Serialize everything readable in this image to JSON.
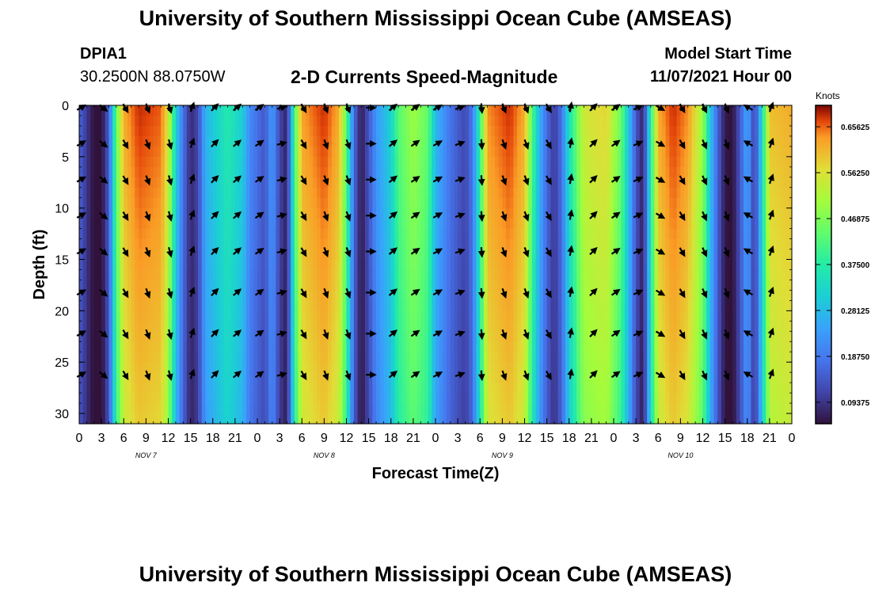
{
  "header": {
    "title": "University of Southern Mississippi Ocean Cube (AMSEAS)",
    "station_id": "DPIA1",
    "station_coords": "30.2500N  88.0750W",
    "subtitle": "2-D Currents Speed-Magnitude",
    "model_start_label": "Model Start Time",
    "model_start_value": "11/07/2021 Hour 00"
  },
  "footer": {
    "title": "University of Southern Mississippi Ocean Cube (AMSEAS)"
  },
  "chart_data": {
    "type": "heatmap",
    "title": "2-D Currents Speed-Magnitude",
    "xlabel": "Forecast Time(Z)",
    "ylabel": "Depth (ft)",
    "x_tick_labels": [
      "0",
      "3",
      "6",
      "9",
      "12",
      "15",
      "18",
      "21",
      "0",
      "3",
      "6",
      "9",
      "12",
      "15",
      "18",
      "21",
      "0",
      "3",
      "6",
      "9",
      "12",
      "15",
      "18",
      "21",
      "0",
      "3",
      "6",
      "9",
      "12",
      "15",
      "18",
      "21",
      "0"
    ],
    "date_labels": [
      {
        "label": "NOV 7",
        "hour": 9
      },
      {
        "label": "NOV 8",
        "hour": 33
      },
      {
        "label": "NOV 9",
        "hour": 57
      },
      {
        "label": "NOV 10",
        "hour": 81
      }
    ],
    "x_range_hours": [
      0,
      96
    ],
    "y_ticks": [
      0,
      5,
      10,
      15,
      20,
      25,
      30
    ],
    "y_range_ft": [
      0,
      31
    ],
    "colorbar": {
      "label": "Knots",
      "ticks": [
        "0.09375",
        "0.18750",
        "0.28125",
        "0.37500",
        "0.46875",
        "0.56250",
        "0.65625"
      ],
      "range": [
        0.05,
        0.7
      ]
    },
    "surface_speed_profile_knots": [
      {
        "hour": 0,
        "speed": 0.16
      },
      {
        "hour": 1,
        "speed": 0.1
      },
      {
        "hour": 2,
        "speed": 0.05
      },
      {
        "hour": 3,
        "speed": 0.05
      },
      {
        "hour": 4,
        "speed": 0.15
      },
      {
        "hour": 4.5,
        "speed": 0.3
      },
      {
        "hour": 5,
        "speed": 0.45
      },
      {
        "hour": 6,
        "speed": 0.62
      },
      {
        "hour": 8,
        "speed": 0.68
      },
      {
        "hour": 11,
        "speed": 0.66
      },
      {
        "hour": 12,
        "speed": 0.56
      },
      {
        "hour": 13,
        "speed": 0.32
      },
      {
        "hour": 14,
        "speed": 0.18
      },
      {
        "hour": 15,
        "speed": 0.08
      },
      {
        "hour": 16,
        "speed": 0.12
      },
      {
        "hour": 17,
        "speed": 0.27
      },
      {
        "hour": 20,
        "speed": 0.37
      },
      {
        "hour": 22,
        "speed": 0.31
      },
      {
        "hour": 23,
        "speed": 0.21
      },
      {
        "hour": 25,
        "speed": 0.14
      },
      {
        "hour": 26,
        "speed": 0.24
      },
      {
        "hour": 27,
        "speed": 0.12
      },
      {
        "hour": 28,
        "speed": 0.07
      },
      {
        "hour": 29,
        "speed": 0.42
      },
      {
        "hour": 30,
        "speed": 0.63
      },
      {
        "hour": 33,
        "speed": 0.68
      },
      {
        "hour": 35,
        "speed": 0.62
      },
      {
        "hour": 36,
        "speed": 0.44
      },
      {
        "hour": 37,
        "speed": 0.17
      },
      {
        "hour": 38,
        "speed": 0.06
      },
      {
        "hour": 39,
        "speed": 0.14
      },
      {
        "hour": 40,
        "speed": 0.23
      },
      {
        "hour": 42,
        "speed": 0.32
      },
      {
        "hour": 43,
        "speed": 0.43
      },
      {
        "hour": 45,
        "speed": 0.5
      },
      {
        "hour": 47,
        "speed": 0.44
      },
      {
        "hour": 48,
        "speed": 0.28
      },
      {
        "hour": 50,
        "speed": 0.18
      },
      {
        "hour": 52,
        "speed": 0.12
      },
      {
        "hour": 53,
        "speed": 0.19
      },
      {
        "hour": 54,
        "speed": 0.4
      },
      {
        "hour": 55,
        "speed": 0.64
      },
      {
        "hour": 58,
        "speed": 0.68
      },
      {
        "hour": 60,
        "speed": 0.62
      },
      {
        "hour": 61,
        "speed": 0.43
      },
      {
        "hour": 62,
        "speed": 0.27
      },
      {
        "hour": 63,
        "speed": 0.17
      },
      {
        "hour": 64,
        "speed": 0.1
      },
      {
        "hour": 65,
        "speed": 0.18
      },
      {
        "hour": 66,
        "speed": 0.35
      },
      {
        "hour": 68,
        "speed": 0.55
      },
      {
        "hour": 71,
        "speed": 0.58
      },
      {
        "hour": 73,
        "speed": 0.45
      },
      {
        "hour": 74,
        "speed": 0.3
      },
      {
        "hour": 75,
        "speed": 0.14
      },
      {
        "hour": 76,
        "speed": 0.07
      },
      {
        "hour": 77,
        "speed": 0.38
      },
      {
        "hour": 78,
        "speed": 0.62
      },
      {
        "hour": 80,
        "speed": 0.68
      },
      {
        "hour": 82,
        "speed": 0.64
      },
      {
        "hour": 84,
        "speed": 0.5
      },
      {
        "hour": 85,
        "speed": 0.3
      },
      {
        "hour": 86,
        "speed": 0.16
      },
      {
        "hour": 87,
        "speed": 0.06
      },
      {
        "hour": 88,
        "speed": 0.05
      },
      {
        "hour": 89,
        "speed": 0.14
      },
      {
        "hour": 90,
        "speed": 0.26
      },
      {
        "hour": 91,
        "speed": 0.1
      },
      {
        "hour": 92,
        "speed": 0.34
      },
      {
        "hour": 93,
        "speed": 0.6
      },
      {
        "hour": 96,
        "speed": 0.62
      }
    ],
    "vector_hours": [
      0,
      3,
      6,
      9,
      12,
      15,
      18,
      21,
      24,
      27,
      30,
      33,
      36,
      39,
      42,
      45,
      48,
      51,
      54,
      57,
      60,
      63,
      66,
      69,
      72,
      75,
      78,
      81,
      84,
      87,
      90,
      93
    ],
    "vector_depths_ft": [
      0,
      3.5,
      7,
      10.5,
      14,
      18,
      22,
      26
    ],
    "vector_direction_by_hour_deg": [
      {
        "hour": 0,
        "dir": 60
      },
      {
        "hour": 3,
        "dir": 130
      },
      {
        "hour": 6,
        "dir": 150
      },
      {
        "hour": 9,
        "dir": 160
      },
      {
        "hour": 12,
        "dir": 165
      },
      {
        "hour": 15,
        "dir": 20
      },
      {
        "hour": 18,
        "dir": 45
      },
      {
        "hour": 21,
        "dir": 50
      },
      {
        "hour": 24,
        "dir": 55
      },
      {
        "hour": 27,
        "dir": 75
      },
      {
        "hour": 30,
        "dir": 150
      },
      {
        "hour": 33,
        "dir": 160
      },
      {
        "hour": 36,
        "dir": 160
      },
      {
        "hour": 39,
        "dir": 90
      },
      {
        "hour": 42,
        "dir": 50
      },
      {
        "hour": 45,
        "dir": 55
      },
      {
        "hour": 48,
        "dir": 60
      },
      {
        "hour": 51,
        "dir": 70
      },
      {
        "hour": 54,
        "dir": 175
      },
      {
        "hour": 57,
        "dir": 160
      },
      {
        "hour": 60,
        "dir": 160
      },
      {
        "hour": 63,
        "dir": 150
      },
      {
        "hour": 66,
        "dir": 10
      },
      {
        "hour": 69,
        "dir": 45
      },
      {
        "hour": 72,
        "dir": 55
      },
      {
        "hour": 75,
        "dir": 65
      },
      {
        "hour": 78,
        "dir": 120
      },
      {
        "hour": 81,
        "dir": 150
      },
      {
        "hour": 84,
        "dir": 155
      },
      {
        "hour": 87,
        "dir": 160
      },
      {
        "hour": 90,
        "dir": 300
      },
      {
        "hour": 93,
        "dir": 20
      }
    ]
  }
}
